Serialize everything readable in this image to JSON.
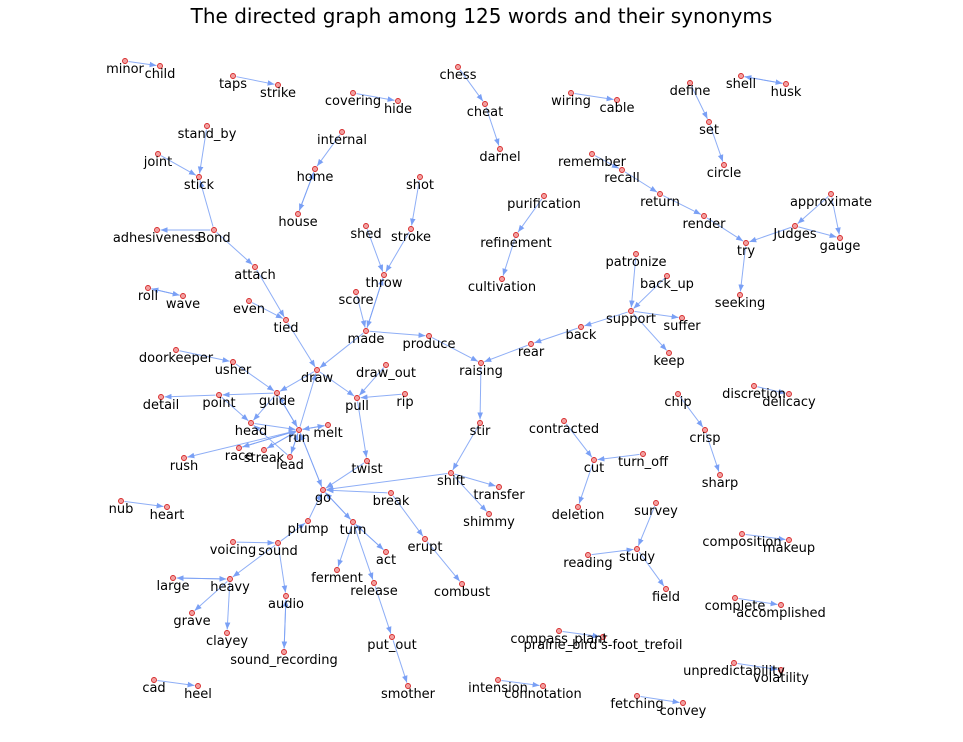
{
  "title": "The directed graph among 125 words and their synonyms",
  "colors": {
    "edge": "#7aa0f5",
    "node_fill": "#f2a0a0",
    "node_stroke": "#d62728",
    "label": "#000000"
  },
  "nodes": [
    {
      "id": "minor",
      "label": "minor"
    },
    {
      "id": "child",
      "label": "child"
    },
    {
      "id": "taps",
      "label": "taps"
    },
    {
      "id": "strike",
      "label": "strike"
    },
    {
      "id": "covering",
      "label": "covering"
    },
    {
      "id": "hide",
      "label": "hide"
    },
    {
      "id": "chess",
      "label": "chess"
    },
    {
      "id": "cheat",
      "label": "cheat"
    },
    {
      "id": "darnel",
      "label": "darnel"
    },
    {
      "id": "wiring",
      "label": "wiring"
    },
    {
      "id": "cable",
      "label": "cable"
    },
    {
      "id": "define",
      "label": "define"
    },
    {
      "id": "set",
      "label": "set"
    },
    {
      "id": "circle",
      "label": "circle"
    },
    {
      "id": "shell",
      "label": "shell"
    },
    {
      "id": "husk",
      "label": "husk"
    },
    {
      "id": "stand_by",
      "label": "stand_by"
    },
    {
      "id": "joint",
      "label": "joint"
    },
    {
      "id": "stick",
      "label": "stick"
    },
    {
      "id": "internal",
      "label": "internal"
    },
    {
      "id": "home",
      "label": "home"
    },
    {
      "id": "house",
      "label": "house"
    },
    {
      "id": "shot",
      "label": "shot"
    },
    {
      "id": "stroke",
      "label": "stroke"
    },
    {
      "id": "remember",
      "label": "remember"
    },
    {
      "id": "recall",
      "label": "recall"
    },
    {
      "id": "return",
      "label": "return"
    },
    {
      "id": "render",
      "label": "render"
    },
    {
      "id": "try",
      "label": "try"
    },
    {
      "id": "approximate",
      "label": "approximate"
    },
    {
      "id": "judges",
      "label": "Judges"
    },
    {
      "id": "gauge",
      "label": "gauge"
    },
    {
      "id": "seeking",
      "label": "seeking"
    },
    {
      "id": "purification",
      "label": "purification"
    },
    {
      "id": "refinement",
      "label": "refinement"
    },
    {
      "id": "cultivation",
      "label": "cultivation"
    },
    {
      "id": "adhesiveness",
      "label": "adhesiveness"
    },
    {
      "id": "bond",
      "label": "Bond"
    },
    {
      "id": "attach",
      "label": "attach"
    },
    {
      "id": "shed",
      "label": "shed"
    },
    {
      "id": "throw",
      "label": "throw"
    },
    {
      "id": "score",
      "label": "score"
    },
    {
      "id": "roll",
      "label": "roll"
    },
    {
      "id": "wave",
      "label": "wave"
    },
    {
      "id": "even",
      "label": "even"
    },
    {
      "id": "tied",
      "label": "tied"
    },
    {
      "id": "made",
      "label": "made"
    },
    {
      "id": "produce",
      "label": "produce"
    },
    {
      "id": "patronize",
      "label": "patronize"
    },
    {
      "id": "back_up",
      "label": "back_up"
    },
    {
      "id": "support",
      "label": "support"
    },
    {
      "id": "suffer",
      "label": "suffer"
    },
    {
      "id": "back",
      "label": "back"
    },
    {
      "id": "rear",
      "label": "rear"
    },
    {
      "id": "keep",
      "label": "keep"
    },
    {
      "id": "raising",
      "label": "raising"
    },
    {
      "id": "doorkeeper",
      "label": "doorkeeper"
    },
    {
      "id": "usher",
      "label": "usher"
    },
    {
      "id": "draw",
      "label": "draw"
    },
    {
      "id": "draw_out",
      "label": "draw_out"
    },
    {
      "id": "detail",
      "label": "detail"
    },
    {
      "id": "point",
      "label": "point"
    },
    {
      "id": "guide",
      "label": "guide"
    },
    {
      "id": "pull",
      "label": "pull"
    },
    {
      "id": "rip",
      "label": "rip"
    },
    {
      "id": "discretion",
      "label": "discretion"
    },
    {
      "id": "delicacy",
      "label": "delicacy"
    },
    {
      "id": "chip",
      "label": "chip"
    },
    {
      "id": "crisp",
      "label": "crisp"
    },
    {
      "id": "sharp",
      "label": "sharp"
    },
    {
      "id": "head",
      "label": "head"
    },
    {
      "id": "run",
      "label": "run"
    },
    {
      "id": "melt",
      "label": "melt"
    },
    {
      "id": "stir",
      "label": "stir"
    },
    {
      "id": "contracted",
      "label": "contracted"
    },
    {
      "id": "cut",
      "label": "cut"
    },
    {
      "id": "turn_off",
      "label": "turn_off"
    },
    {
      "id": "rush",
      "label": "rush"
    },
    {
      "id": "race",
      "label": "race"
    },
    {
      "id": "streak",
      "label": "streak"
    },
    {
      "id": "lead",
      "label": "lead"
    },
    {
      "id": "twist",
      "label": "twist"
    },
    {
      "id": "shift",
      "label": "shift"
    },
    {
      "id": "transfer",
      "label": "transfer"
    },
    {
      "id": "go",
      "label": "go"
    },
    {
      "id": "break",
      "label": "break"
    },
    {
      "id": "shimmy",
      "label": "shimmy"
    },
    {
      "id": "deletion",
      "label": "deletion"
    },
    {
      "id": "nub",
      "label": "nub"
    },
    {
      "id": "heart",
      "label": "heart"
    },
    {
      "id": "survey",
      "label": "survey"
    },
    {
      "id": "plump",
      "label": "plump"
    },
    {
      "id": "turn",
      "label": "turn"
    },
    {
      "id": "erupt",
      "label": "erupt"
    },
    {
      "id": "voicing",
      "label": "voicing"
    },
    {
      "id": "sound",
      "label": "sound"
    },
    {
      "id": "act",
      "label": "act"
    },
    {
      "id": "reading",
      "label": "reading"
    },
    {
      "id": "study",
      "label": "study"
    },
    {
      "id": "composition",
      "label": "composition"
    },
    {
      "id": "makeup",
      "label": "makeup"
    },
    {
      "id": "large",
      "label": "large"
    },
    {
      "id": "heavy",
      "label": "heavy"
    },
    {
      "id": "ferment",
      "label": "ferment"
    },
    {
      "id": "release",
      "label": "release"
    },
    {
      "id": "combust",
      "label": "combust"
    },
    {
      "id": "field",
      "label": "field"
    },
    {
      "id": "grave",
      "label": "grave"
    },
    {
      "id": "audio",
      "label": "audio"
    },
    {
      "id": "complete",
      "label": "complete"
    },
    {
      "id": "accomplished",
      "label": "accomplished"
    },
    {
      "id": "clayey",
      "label": "clayey"
    },
    {
      "id": "compass_plant",
      "label": "compass_plant"
    },
    {
      "id": "prairie",
      "label": "prairie_bird's-foot_trefoil"
    },
    {
      "id": "put_out",
      "label": "put_out"
    },
    {
      "id": "sound_recording",
      "label": "sound_recording"
    },
    {
      "id": "unpredictability",
      "label": "unpredictability"
    },
    {
      "id": "volatility",
      "label": "volatility"
    },
    {
      "id": "cad",
      "label": "cad"
    },
    {
      "id": "heel",
      "label": "heel"
    },
    {
      "id": "intension",
      "label": "intension"
    },
    {
      "id": "connotation",
      "label": "connotation"
    },
    {
      "id": "smother",
      "label": "smother"
    },
    {
      "id": "fetching",
      "label": "fetching"
    },
    {
      "id": "convey",
      "label": "convey"
    }
  ],
  "edges": [
    [
      "minor",
      "child"
    ],
    [
      "taps",
      "strike"
    ],
    [
      "covering",
      "hide"
    ],
    [
      "chess",
      "cheat"
    ],
    [
      "cheat",
      "darnel"
    ],
    [
      "wiring",
      "cable"
    ],
    [
      "define",
      "set"
    ],
    [
      "set",
      "circle"
    ],
    [
      "shell",
      "husk"
    ],
    [
      "husk",
      "shell"
    ],
    [
      "stand_by",
      "stick"
    ],
    [
      "joint",
      "stick"
    ],
    [
      "bond",
      "stick"
    ],
    [
      "bond",
      "adhesiveness"
    ],
    [
      "bond",
      "attach"
    ],
    [
      "internal",
      "home"
    ],
    [
      "home",
      "house"
    ],
    [
      "house",
      "home"
    ],
    [
      "shot",
      "stroke"
    ],
    [
      "stroke",
      "throw"
    ],
    [
      "shed",
      "throw"
    ],
    [
      "throw",
      "made"
    ],
    [
      "score",
      "made"
    ],
    [
      "made",
      "throw"
    ],
    [
      "remember",
      "recall"
    ],
    [
      "recall",
      "return"
    ],
    [
      "return",
      "render"
    ],
    [
      "render",
      "try"
    ],
    [
      "judges",
      "try"
    ],
    [
      "judges",
      "gauge"
    ],
    [
      "approximate",
      "gauge"
    ],
    [
      "approximate",
      "judges"
    ],
    [
      "try",
      "seeking"
    ],
    [
      "purification",
      "refinement"
    ],
    [
      "refinement",
      "cultivation"
    ],
    [
      "roll",
      "wave"
    ],
    [
      "wave",
      "roll"
    ],
    [
      "even",
      "tied"
    ],
    [
      "attach",
      "tied"
    ],
    [
      "tied",
      "draw"
    ],
    [
      "made",
      "draw"
    ],
    [
      "made",
      "produce"
    ],
    [
      "produce",
      "raising"
    ],
    [
      "patronize",
      "support"
    ],
    [
      "back_up",
      "support"
    ],
    [
      "support",
      "suffer"
    ],
    [
      "support",
      "keep"
    ],
    [
      "support",
      "back"
    ],
    [
      "back",
      "rear"
    ],
    [
      "rear",
      "raising"
    ],
    [
      "raising",
      "stir"
    ],
    [
      "doorkeeper",
      "usher"
    ],
    [
      "usher",
      "guide"
    ],
    [
      "draw",
      "pull"
    ],
    [
      "draw",
      "guide"
    ],
    [
      "draw_out",
      "pull"
    ],
    [
      "rip",
      "pull"
    ],
    [
      "pull",
      "twist"
    ],
    [
      "guide",
      "point"
    ],
    [
      "point",
      "detail"
    ],
    [
      "guide",
      "head"
    ],
    [
      "point",
      "head"
    ],
    [
      "guide",
      "run"
    ],
    [
      "run",
      "guide"
    ],
    [
      "run",
      "draw"
    ],
    [
      "melt",
      "run"
    ],
    [
      "run",
      "melt"
    ],
    [
      "head",
      "run"
    ],
    [
      "run",
      "race"
    ],
    [
      "race",
      "run"
    ],
    [
      "streak",
      "run"
    ],
    [
      "run",
      "rush"
    ],
    [
      "run",
      "lead"
    ],
    [
      "lead",
      "run"
    ],
    [
      "run",
      "streak"
    ],
    [
      "go",
      "run"
    ],
    [
      "run",
      "go"
    ],
    [
      "twist",
      "go"
    ],
    [
      "stir",
      "shift"
    ],
    [
      "shift",
      "transfer"
    ],
    [
      "shift",
      "shimmy"
    ],
    [
      "shift",
      "go"
    ],
    [
      "break",
      "go"
    ],
    [
      "break",
      "erupt"
    ],
    [
      "erupt",
      "combust"
    ],
    [
      "discretion",
      "delicacy"
    ],
    [
      "chip",
      "crisp"
    ],
    [
      "crisp",
      "sharp"
    ],
    [
      "contracted",
      "cut"
    ],
    [
      "turn_off",
      "cut"
    ],
    [
      "cut",
      "deletion"
    ],
    [
      "nub",
      "heart"
    ],
    [
      "survey",
      "study"
    ],
    [
      "reading",
      "study"
    ],
    [
      "study",
      "field"
    ],
    [
      "composition",
      "makeup"
    ],
    [
      "complete",
      "accomplished"
    ],
    [
      "go",
      "turn"
    ],
    [
      "plump",
      "go"
    ],
    [
      "sound",
      "plump"
    ],
    [
      "voicing",
      "sound"
    ],
    [
      "sound",
      "heavy"
    ],
    [
      "sound",
      "audio"
    ],
    [
      "heavy",
      "large"
    ],
    [
      "large",
      "heavy"
    ],
    [
      "heavy",
      "grave"
    ],
    [
      "heavy",
      "clayey"
    ],
    [
      "audio",
      "sound_recording"
    ],
    [
      "sound_recording",
      "audio"
    ],
    [
      "turn",
      "act"
    ],
    [
      "turn",
      "ferment"
    ],
    [
      "turn",
      "release"
    ],
    [
      "act",
      "turn"
    ],
    [
      "release",
      "put_out"
    ],
    [
      "put_out",
      "smother"
    ],
    [
      "compass_plant",
      "prairie"
    ],
    [
      "unpredictability",
      "volatility"
    ],
    [
      "cad",
      "heel"
    ],
    [
      "intension",
      "connotation"
    ],
    [
      "fetching",
      "convey"
    ],
    [
      "turn",
      "go"
    ],
    [
      "lead",
      "head"
    ]
  ]
}
